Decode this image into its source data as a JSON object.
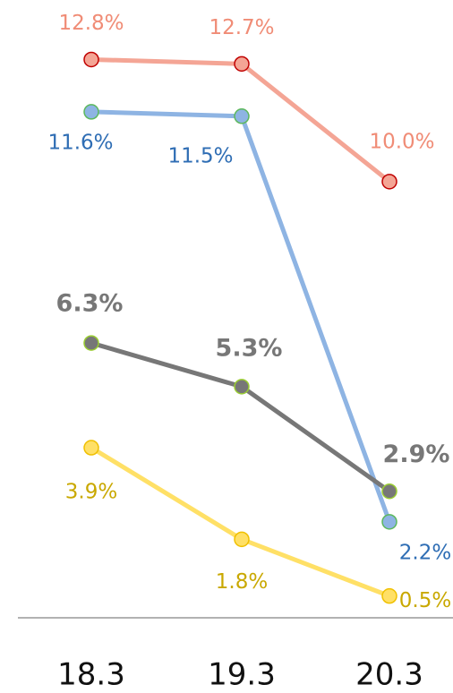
{
  "chart_data": {
    "type": "line",
    "categories": [
      "18.3",
      "19.3",
      "20.3"
    ],
    "ylim": [
      0,
      14
    ],
    "series": [
      {
        "color": "#f4a595",
        "marker_edge": "#c00000",
        "label_color": "#f08c76",
        "values": [
          12.8,
          12.7,
          10.0
        ],
        "value_labels": [
          "12.8%",
          "12.7%",
          "10.0%"
        ]
      },
      {
        "color": "#8eb4e3",
        "marker_edge": "#5cb85c",
        "label_color": "#2e6db4",
        "values": [
          11.6,
          11.5,
          2.2
        ],
        "value_labels": [
          "11.6%",
          "11.5%",
          "2.2%"
        ]
      },
      {
        "color": "#777777",
        "marker_edge": "#9acd32",
        "label_color": "#777777",
        "values": [
          6.3,
          5.3,
          2.9
        ],
        "value_labels": [
          "6.3%",
          "5.3%",
          "2.9%"
        ]
      },
      {
        "color": "#ffe066",
        "marker_edge": "#f0c000",
        "label_color": "#c9a800",
        "values": [
          3.9,
          1.8,
          0.5
        ],
        "value_labels": [
          "3.9%",
          "1.8%",
          "0.5%"
        ]
      }
    ]
  }
}
